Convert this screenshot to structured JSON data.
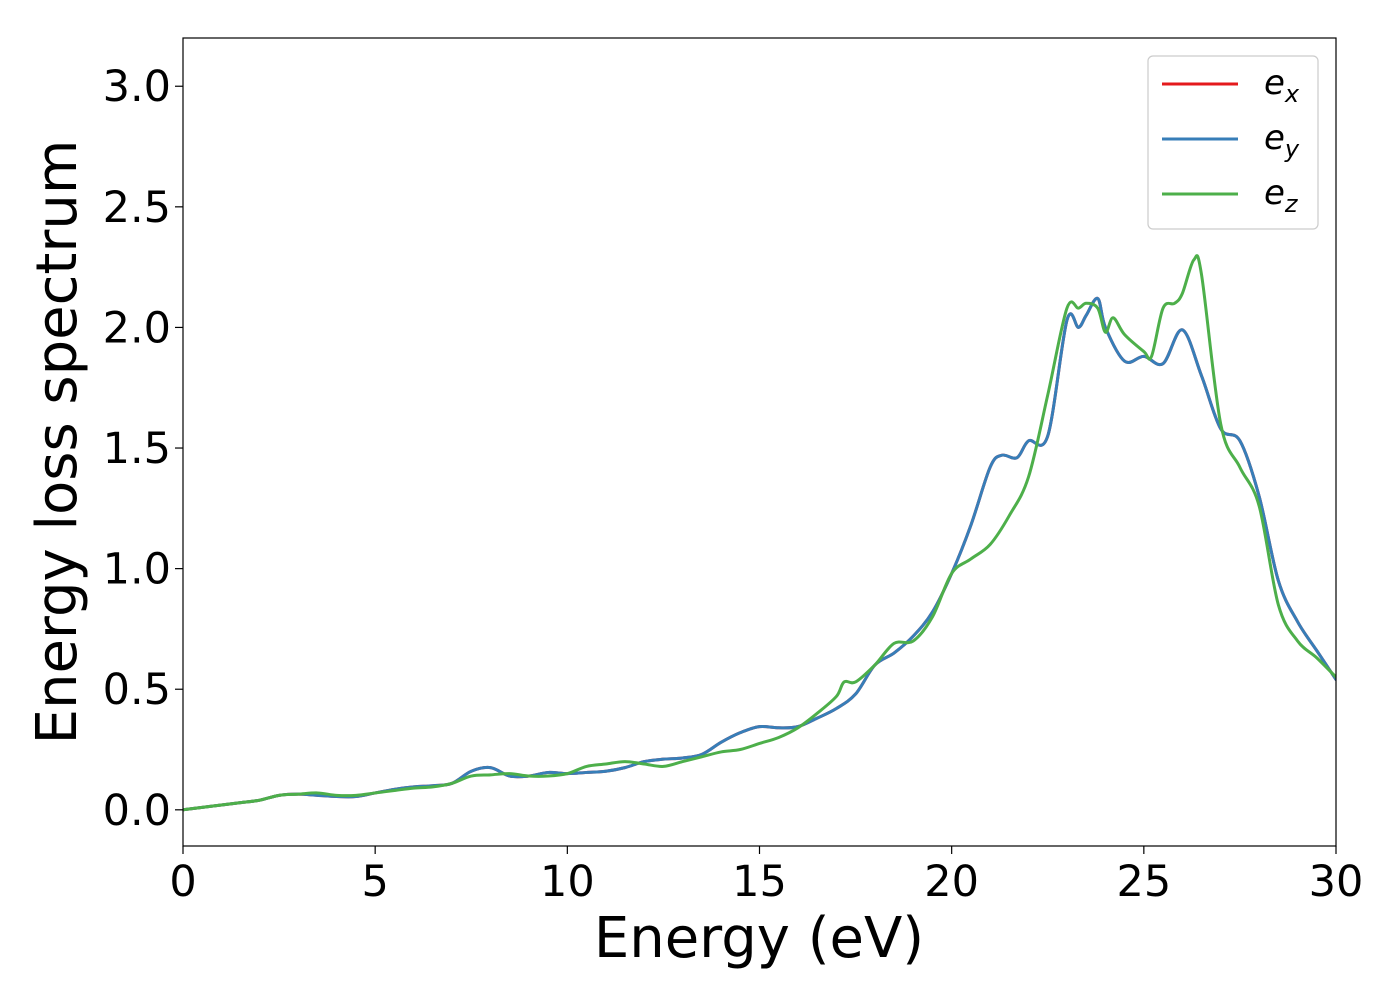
{
  "chart_data": {
    "type": "line",
    "title": "",
    "xlabel": "Energy (eV)",
    "ylabel": "Energy loss spectrum",
    "xlim": [
      0,
      30
    ],
    "ylim": [
      -0.15,
      3.2
    ],
    "xticks": [
      0,
      5,
      10,
      15,
      20,
      25,
      30
    ],
    "xtick_labels": [
      "0",
      "5",
      "10",
      "15",
      "20",
      "25",
      "30"
    ],
    "yticks": [
      0.0,
      0.5,
      1.0,
      1.5,
      2.0,
      2.5,
      3.0
    ],
    "ytick_labels": [
      "0.0",
      "0.5",
      "1.0",
      "1.5",
      "2.0",
      "2.5",
      "3.0"
    ],
    "grid": false,
    "legend_position": "top-right",
    "series": [
      {
        "name": "e_x",
        "legend_base": "e",
        "legend_sub": "x",
        "color": "#e41a1c",
        "x": [
          0,
          0.5,
          1,
          1.5,
          2,
          2.5,
          3,
          3.5,
          4,
          4.5,
          5,
          5.5,
          6,
          6.5,
          7,
          7.5,
          8,
          8.5,
          9,
          9.5,
          10,
          10.5,
          11,
          11.5,
          12,
          12.5,
          13,
          13.5,
          14,
          14.5,
          15,
          15.5,
          16,
          16.5,
          17,
          17.5,
          18,
          18.5,
          19,
          19.5,
          20,
          20.5,
          21,
          21.3,
          21.7,
          22,
          22.5,
          23,
          23.3,
          23.5,
          23.8,
          24,
          24.5,
          25,
          25.5,
          26,
          26.5,
          27,
          27.5,
          28,
          28.5,
          29,
          29.5,
          30
        ],
        "y": [
          0.0,
          0.01,
          0.02,
          0.03,
          0.04,
          0.06,
          0.065,
          0.06,
          0.055,
          0.055,
          0.07,
          0.085,
          0.095,
          0.1,
          0.11,
          0.16,
          0.175,
          0.14,
          0.14,
          0.155,
          0.15,
          0.155,
          0.16,
          0.175,
          0.2,
          0.21,
          0.215,
          0.23,
          0.28,
          0.32,
          0.345,
          0.34,
          0.345,
          0.38,
          0.42,
          0.48,
          0.6,
          0.65,
          0.72,
          0.82,
          0.98,
          1.18,
          1.42,
          1.47,
          1.46,
          1.53,
          1.55,
          2.03,
          2.0,
          2.05,
          2.12,
          2.0,
          1.86,
          1.88,
          1.85,
          1.99,
          1.8,
          1.58,
          1.53,
          1.3,
          0.95,
          0.78,
          0.66,
          0.54
        ]
      },
      {
        "name": "e_y",
        "legend_base": "e",
        "legend_sub": "y",
        "color": "#377eb8",
        "x": [
          0,
          0.5,
          1,
          1.5,
          2,
          2.5,
          3,
          3.5,
          4,
          4.5,
          5,
          5.5,
          6,
          6.5,
          7,
          7.5,
          8,
          8.5,
          9,
          9.5,
          10,
          10.5,
          11,
          11.5,
          12,
          12.5,
          13,
          13.5,
          14,
          14.5,
          15,
          15.5,
          16,
          16.5,
          17,
          17.5,
          18,
          18.5,
          19,
          19.5,
          20,
          20.5,
          21,
          21.3,
          21.7,
          22,
          22.5,
          23,
          23.3,
          23.5,
          23.8,
          24,
          24.5,
          25,
          25.5,
          26,
          26.5,
          27,
          27.5,
          28,
          28.5,
          29,
          29.5,
          30
        ],
        "y": [
          0.0,
          0.01,
          0.02,
          0.03,
          0.04,
          0.06,
          0.065,
          0.06,
          0.055,
          0.055,
          0.07,
          0.085,
          0.095,
          0.1,
          0.11,
          0.16,
          0.175,
          0.14,
          0.14,
          0.155,
          0.15,
          0.155,
          0.16,
          0.175,
          0.2,
          0.21,
          0.215,
          0.23,
          0.28,
          0.32,
          0.345,
          0.34,
          0.345,
          0.38,
          0.42,
          0.48,
          0.6,
          0.65,
          0.72,
          0.82,
          0.98,
          1.18,
          1.42,
          1.47,
          1.46,
          1.53,
          1.55,
          2.03,
          2.0,
          2.05,
          2.12,
          2.0,
          1.86,
          1.88,
          1.85,
          1.99,
          1.8,
          1.58,
          1.53,
          1.3,
          0.95,
          0.78,
          0.66,
          0.54
        ]
      },
      {
        "name": "e_z",
        "legend_base": "e",
        "legend_sub": "z",
        "color": "#4daf4a",
        "x": [
          0,
          0.5,
          1,
          1.5,
          2,
          2.5,
          3,
          3.5,
          4,
          4.5,
          5,
          5.5,
          6,
          6.5,
          7,
          7.5,
          8,
          8.5,
          9,
          9.5,
          10,
          10.5,
          11,
          11.5,
          12,
          12.5,
          13,
          13.5,
          14,
          14.5,
          15,
          15.5,
          16,
          16.5,
          17,
          17.2,
          17.5,
          18,
          18.5,
          19,
          19.5,
          20,
          20.5,
          21,
          21.5,
          22,
          22.5,
          23,
          23.3,
          23.5,
          23.8,
          24,
          24.2,
          24.5,
          25,
          25.2,
          25.5,
          25.8,
          26,
          26.3,
          26.5,
          27,
          27.5,
          28,
          28.5,
          29,
          29.5,
          30
        ],
        "y": [
          0.0,
          0.01,
          0.02,
          0.03,
          0.04,
          0.06,
          0.065,
          0.07,
          0.06,
          0.06,
          0.07,
          0.08,
          0.09,
          0.095,
          0.11,
          0.14,
          0.145,
          0.15,
          0.14,
          0.14,
          0.15,
          0.18,
          0.19,
          0.2,
          0.19,
          0.18,
          0.2,
          0.22,
          0.24,
          0.25,
          0.275,
          0.3,
          0.34,
          0.4,
          0.47,
          0.53,
          0.53,
          0.6,
          0.69,
          0.7,
          0.8,
          0.98,
          1.04,
          1.1,
          1.22,
          1.38,
          1.72,
          2.08,
          2.08,
          2.1,
          2.08,
          1.98,
          2.04,
          1.97,
          1.9,
          1.88,
          2.08,
          2.1,
          2.14,
          2.28,
          2.22,
          1.6,
          1.42,
          1.26,
          0.85,
          0.7,
          0.63,
          0.55
        ]
      }
    ]
  }
}
